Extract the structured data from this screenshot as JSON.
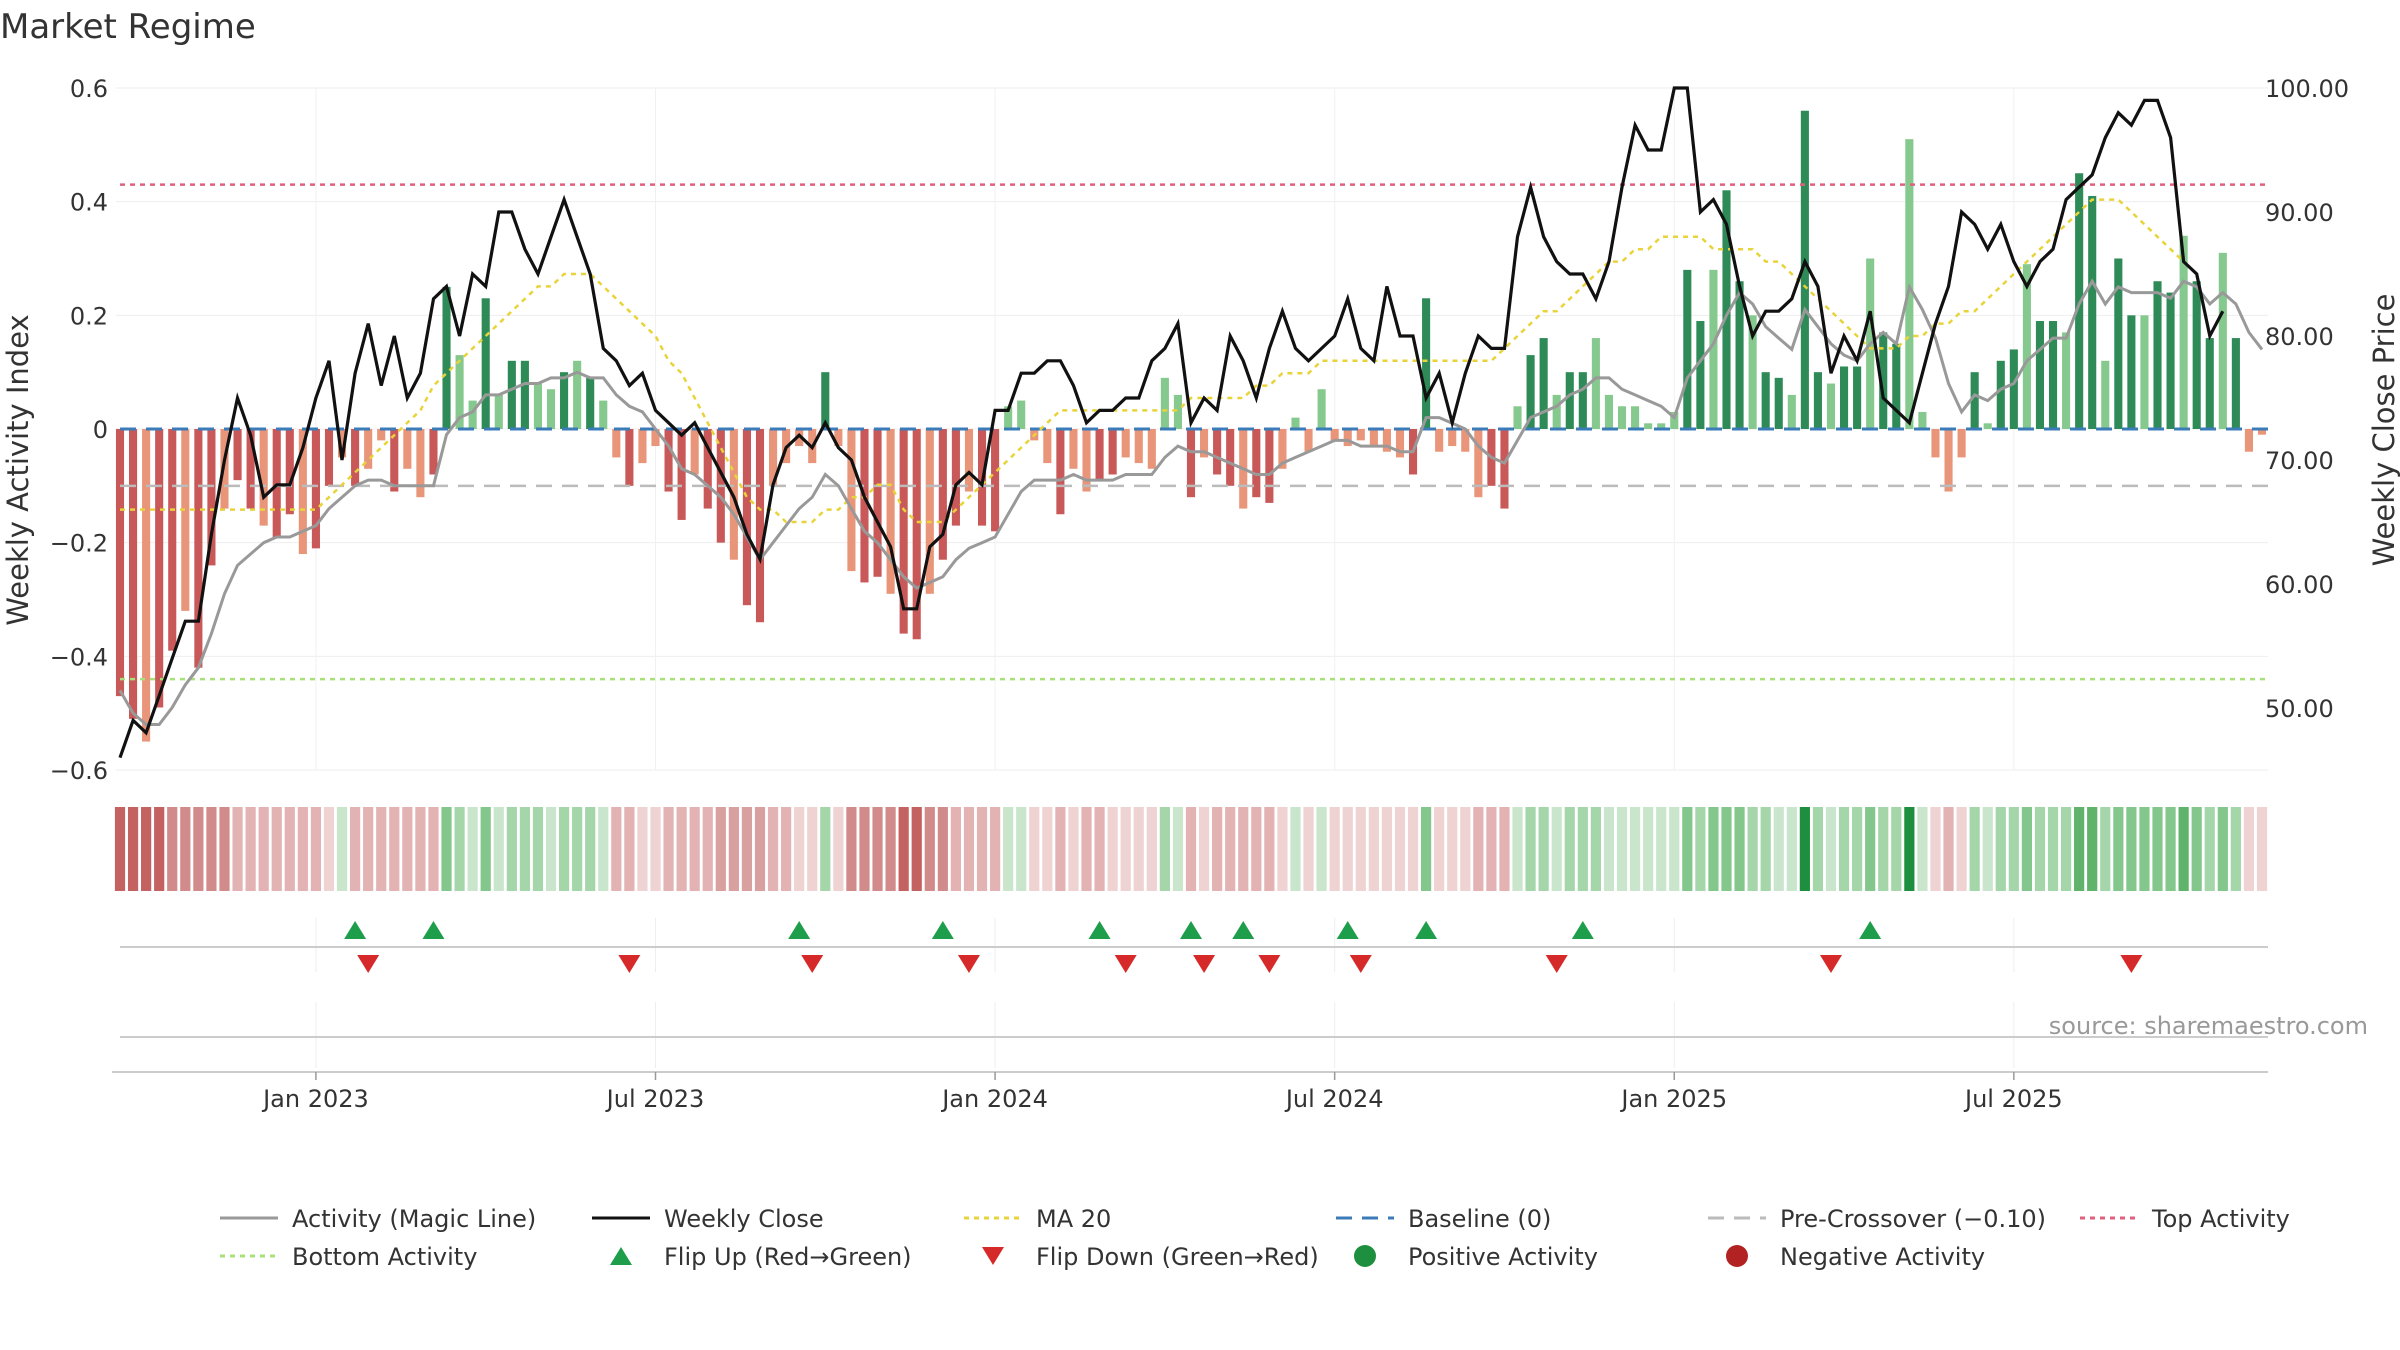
{
  "chart_data": {
    "type": "bar",
    "title": "Market Regime",
    "ylabel": "Weekly Activity Index",
    "y2label": "Weekly Close Price",
    "ylim": [
      -0.6,
      0.6
    ],
    "y2lim": [
      45,
      100
    ],
    "y_ticks": [
      0.6,
      0.4,
      0.2,
      0,
      -0.2,
      -0.4,
      -0.6
    ],
    "y_tick_labels": [
      "0.6",
      "0.4",
      "0.2",
      "0",
      "−0.2",
      "−0.4",
      "−0.6"
    ],
    "y2_ticks": [
      100,
      90,
      80,
      70,
      60,
      50
    ],
    "y2_tick_labels": [
      "100.00",
      "90.00",
      "80.00",
      "70.00",
      "60.00",
      "50.00"
    ],
    "x_tick_labels": [
      "Jan 2023",
      "Jul 2023",
      "Jan 2024",
      "Jul 2024",
      "Jan 2025",
      "Jul 2025"
    ],
    "x_tick_weeks": [
      15,
      41,
      67,
      93,
      119,
      145
    ],
    "reference_lines": {
      "baseline": 0,
      "pre_crossover": -0.1,
      "top_activity": 0.43,
      "bottom_activity": -0.44
    },
    "series": [
      {
        "name": "Weekly Activity",
        "values": [
          -0.47,
          -0.51,
          -0.55,
          -0.49,
          -0.39,
          -0.32,
          -0.42,
          -0.24,
          -0.14,
          -0.09,
          -0.14,
          -0.17,
          -0.19,
          -0.15,
          -0.22,
          -0.21,
          -0.1,
          -0.05,
          -0.1,
          -0.07,
          -0.02,
          -0.11,
          -0.07,
          -0.12,
          -0.08,
          0.25,
          0.13,
          0.05,
          0.23,
          0.06,
          0.12,
          0.12,
          0.08,
          0.07,
          0.1,
          0.12,
          0.09,
          0.05,
          -0.05,
          -0.1,
          -0.06,
          -0.03,
          -0.11,
          -0.16,
          -0.08,
          -0.14,
          -0.2,
          -0.23,
          -0.31,
          -0.34,
          -0.1,
          -0.06,
          -0.03,
          -0.06,
          0.1,
          -0.03,
          -0.25,
          -0.27,
          -0.26,
          -0.29,
          -0.36,
          -0.37,
          -0.29,
          -0.23,
          -0.17,
          -0.11,
          -0.17,
          -0.18,
          0.04,
          0.05,
          -0.02,
          -0.06,
          -0.15,
          -0.07,
          -0.11,
          -0.09,
          -0.08,
          -0.05,
          -0.06,
          -0.07,
          0.09,
          0.06,
          -0.12,
          -0.05,
          -0.08,
          -0.1,
          -0.14,
          -0.12,
          -0.13,
          -0.07,
          0.02,
          -0.04,
          0.07,
          -0.02,
          -0.03,
          -0.02,
          -0.03,
          -0.04,
          -0.05,
          -0.08,
          0.23,
          -0.04,
          -0.03,
          -0.04,
          -0.12,
          -0.1,
          -0.14,
          0.04,
          0.13,
          0.16,
          0.06,
          0.1,
          0.1,
          0.16,
          0.06,
          0.04,
          0.04,
          0.01,
          0.01,
          0.03,
          0.28,
          0.19,
          0.28,
          0.42,
          0.26,
          0.2,
          0.1,
          0.09,
          0.06,
          0.56,
          0.1,
          0.08,
          0.11,
          0.11,
          0.3,
          0.17,
          0.15,
          0.51,
          0.03,
          -0.05,
          -0.11,
          -0.05,
          0.1,
          0.01,
          0.12,
          0.14,
          0.29,
          0.19,
          0.19,
          0.17,
          0.45,
          0.41,
          0.12,
          0.3,
          0.2,
          0.2,
          0.26,
          0.24,
          0.34,
          0.26,
          0.16,
          0.31,
          0.16,
          -0.04,
          -0.01
        ]
      },
      {
        "name": "Activity (Magic Line)",
        "values": [
          -0.46,
          -0.5,
          -0.52,
          -0.52,
          -0.49,
          -0.45,
          -0.42,
          -0.36,
          -0.29,
          -0.24,
          -0.22,
          -0.2,
          -0.19,
          -0.19,
          -0.18,
          -0.17,
          -0.14,
          -0.12,
          -0.1,
          -0.09,
          -0.09,
          -0.1,
          -0.1,
          -0.1,
          -0.1,
          -0.01,
          0.02,
          0.03,
          0.06,
          0.06,
          0.07,
          0.08,
          0.08,
          0.09,
          0.09,
          0.1,
          0.09,
          0.09,
          0.06,
          0.04,
          0.03,
          0.0,
          -0.03,
          -0.07,
          -0.08,
          -0.1,
          -0.12,
          -0.15,
          -0.19,
          -0.23,
          -0.2,
          -0.17,
          -0.14,
          -0.12,
          -0.08,
          -0.1,
          -0.14,
          -0.18,
          -0.2,
          -0.23,
          -0.26,
          -0.28,
          -0.27,
          -0.26,
          -0.23,
          -0.21,
          -0.2,
          -0.19,
          -0.15,
          -0.11,
          -0.09,
          -0.09,
          -0.09,
          -0.08,
          -0.09,
          -0.09,
          -0.09,
          -0.08,
          -0.08,
          -0.08,
          -0.05,
          -0.03,
          -0.04,
          -0.04,
          -0.05,
          -0.06,
          -0.07,
          -0.08,
          -0.08,
          -0.06,
          -0.05,
          -0.04,
          -0.03,
          -0.02,
          -0.02,
          -0.03,
          -0.03,
          -0.03,
          -0.04,
          -0.04,
          0.02,
          0.02,
          0.01,
          0.0,
          -0.03,
          -0.05,
          -0.06,
          -0.02,
          0.02,
          0.03,
          0.04,
          0.06,
          0.07,
          0.09,
          0.09,
          0.07,
          0.06,
          0.05,
          0.04,
          0.02,
          0.09,
          0.12,
          0.15,
          0.2,
          0.24,
          0.22,
          0.18,
          0.16,
          0.14,
          0.21,
          0.18,
          0.15,
          0.13,
          0.12,
          0.15,
          0.17,
          0.15,
          0.25,
          0.21,
          0.16,
          0.08,
          0.03,
          0.06,
          0.05,
          0.07,
          0.08,
          0.12,
          0.14,
          0.16,
          0.16,
          0.22,
          0.26,
          0.22,
          0.25,
          0.24,
          0.24,
          0.24,
          0.23,
          0.26,
          0.25,
          0.22,
          0.24,
          0.22,
          0.17,
          0.14
        ]
      },
      {
        "name": "Weekly Close",
        "values": [
          46,
          49,
          48,
          51,
          54,
          57,
          57,
          64,
          70,
          75,
          72,
          67,
          68,
          68,
          71,
          75,
          78,
          70,
          77,
          81,
          76,
          80,
          75,
          77,
          83,
          84,
          80,
          85,
          84,
          90,
          90,
          87,
          85,
          88,
          91,
          88,
          85,
          79,
          78,
          76,
          77,
          74,
          73,
          72,
          73,
          71,
          69,
          67,
          64,
          62,
          68,
          71,
          72,
          71,
          73,
          71,
          70,
          67,
          65,
          63,
          58,
          58,
          63,
          64,
          68,
          69,
          68,
          74,
          74,
          77,
          77,
          78,
          78,
          76,
          73,
          74,
          74,
          75,
          75,
          78,
          79,
          81,
          73,
          75,
          74,
          80,
          78,
          75,
          79,
          82,
          79,
          78,
          79,
          80,
          83,
          79,
          78,
          84,
          80,
          80,
          75,
          77,
          73,
          77,
          80,
          79,
          79,
          88,
          92,
          88,
          86,
          85,
          85,
          83,
          86,
          92,
          97,
          95,
          95,
          100,
          100,
          90,
          91,
          89,
          84,
          80,
          82,
          82,
          83,
          86,
          84,
          77,
          80,
          78,
          82,
          75,
          74,
          73,
          77,
          81,
          84,
          90,
          89,
          87,
          89,
          86,
          84,
          86,
          87,
          91,
          92,
          93,
          96,
          98,
          97,
          99,
          99,
          96,
          86,
          85,
          80,
          82
        ]
      },
      {
        "name": "MA 20",
        "values": [
          66,
          66,
          66,
          66,
          66,
          66,
          66,
          66,
          66,
          66,
          66,
          66,
          66,
          66,
          66,
          66,
          67,
          68,
          69,
          70,
          71,
          72,
          73,
          74,
          76,
          77,
          78,
          79,
          80,
          81,
          82,
          83,
          84,
          84,
          85,
          85,
          85,
          84,
          83,
          82,
          81,
          80,
          78,
          77,
          75,
          73,
          71,
          69,
          67,
          66,
          66,
          65,
          65,
          65,
          66,
          66,
          67,
          67,
          68,
          68,
          66,
          65,
          65,
          65,
          66,
          67,
          68,
          69,
          70,
          71,
          72,
          73,
          74,
          74,
          74,
          74,
          74,
          74,
          74,
          74,
          74,
          74,
          75,
          75,
          75,
          75,
          75,
          76,
          76,
          77,
          77,
          77,
          78,
          78,
          78,
          78,
          78,
          78,
          78,
          78,
          78,
          78,
          78,
          78,
          78,
          78,
          79,
          80,
          81,
          82,
          82,
          83,
          84,
          85,
          86,
          86,
          87,
          87,
          88,
          88,
          88,
          88,
          87,
          87,
          87,
          87,
          86,
          86,
          85,
          84,
          83,
          82,
          81,
          80,
          79,
          79,
          79,
          80,
          80,
          81,
          81,
          82,
          82,
          83,
          84,
          85,
          86,
          87,
          88,
          89,
          90,
          91,
          91,
          91,
          90,
          89,
          88,
          87,
          86,
          85
        ]
      }
    ]
  },
  "regime_strip": {
    "colors": [
      "#c46161",
      "#c46161",
      "#c46161",
      "#c46161",
      "#d18b8b",
      "#d18b8b",
      "#d18b8b",
      "#d18b8b",
      "#d18b8b",
      "#e3b3b3",
      "#e3b3b3",
      "#e3b3b3",
      "#e3b3b3",
      "#e3b3b3",
      "#e3b3b3",
      "#e3b3b3",
      "#efd3d3",
      "#c9e6cc",
      "#e3b3b3",
      "#e3b3b3",
      "#e3b3b3",
      "#e3b3b3",
      "#e3b3b3",
      "#e3b3b3",
      "#e3b3b3",
      "#84c78c",
      "#a5d6aa",
      "#c9e6cc",
      "#84c78c",
      "#c9e6cc",
      "#a5d6aa",
      "#a5d6aa",
      "#a5d6aa",
      "#c9e6cc",
      "#a5d6aa",
      "#a5d6aa",
      "#a5d6aa",
      "#c9e6cc",
      "#e3b3b3",
      "#e3b3b3",
      "#efd3d3",
      "#efd3d3",
      "#e3b3b3",
      "#e3b3b3",
      "#e3b3b3",
      "#e3b3b3",
      "#d9a0a0",
      "#d9a0a0",
      "#d9a0a0",
      "#d9a0a0",
      "#e3b3b3",
      "#e3b3b3",
      "#efd3d3",
      "#efd3d3",
      "#a5d6aa",
      "#efd3d3",
      "#d18b8b",
      "#d18b8b",
      "#d18b8b",
      "#d18b8b",
      "#c46161",
      "#c46161",
      "#d18b8b",
      "#d18b8b",
      "#e3b3b3",
      "#e3b3b3",
      "#e3b3b3",
      "#e3b3b3",
      "#c9e6cc",
      "#c9e6cc",
      "#efd3d3",
      "#efd3d3",
      "#e3b3b3",
      "#efd3d3",
      "#e3b3b3",
      "#e3b3b3",
      "#efd3d3",
      "#efd3d3",
      "#efd3d3",
      "#efd3d3",
      "#a5d6aa",
      "#c9e6cc",
      "#e3b3b3",
      "#efd3d3",
      "#e3b3b3",
      "#e3b3b3",
      "#e3b3b3",
      "#e3b3b3",
      "#e3b3b3",
      "#efd3d3",
      "#c9e6cc",
      "#efd3d3",
      "#c9e6cc",
      "#efd3d3",
      "#efd3d3",
      "#efd3d3",
      "#efd3d3",
      "#efd3d3",
      "#efd3d3",
      "#efd3d3",
      "#84c78c",
      "#efd3d3",
      "#efd3d3",
      "#efd3d3",
      "#e3b3b3",
      "#e3b3b3",
      "#e3b3b3",
      "#c9e6cc",
      "#a5d6aa",
      "#a5d6aa",
      "#c9e6cc",
      "#a5d6aa",
      "#a5d6aa",
      "#a5d6aa",
      "#c9e6cc",
      "#c9e6cc",
      "#c9e6cc",
      "#c9e6cc",
      "#c9e6cc",
      "#c9e6cc",
      "#84c78c",
      "#a5d6aa",
      "#84c78c",
      "#84c78c",
      "#84c78c",
      "#a5d6aa",
      "#a5d6aa",
      "#c9e6cc",
      "#c9e6cc",
      "#1e8f3e",
      "#a5d6aa",
      "#c9e6cc",
      "#a5d6aa",
      "#a5d6aa",
      "#84c78c",
      "#a5d6aa",
      "#a5d6aa",
      "#1e8f3e",
      "#c9e6cc",
      "#efd3d3",
      "#e3b3b3",
      "#efd3d3",
      "#a5d6aa",
      "#c9e6cc",
      "#a5d6aa",
      "#a5d6aa",
      "#84c78c",
      "#a5d6aa",
      "#a5d6aa",
      "#a5d6aa",
      "#5fb36b",
      "#5fb36b",
      "#a5d6aa",
      "#84c78c",
      "#84c78c",
      "#84c78c",
      "#84c78c",
      "#84c78c",
      "#5fb36b",
      "#84c78c",
      "#a5d6aa",
      "#84c78c",
      "#a5d6aa",
      "#efd3d3",
      "#efd3d3"
    ]
  },
  "flips": {
    "up": [
      18,
      24,
      52,
      63,
      75,
      82,
      86,
      94,
      100,
      112,
      134
    ],
    "down": [
      19,
      39,
      53,
      65,
      77,
      83,
      88,
      95,
      110,
      131,
      154
    ]
  },
  "legend": [
    {
      "label": "Activity (Magic Line)",
      "kind": "line",
      "color": "#999999",
      "dash": ""
    },
    {
      "label": "Weekly Close",
      "kind": "line",
      "color": "#111111",
      "dash": ""
    },
    {
      "label": "MA 20",
      "kind": "line",
      "color": "#e8d43a",
      "dash": "5,5"
    },
    {
      "label": "Baseline (0)",
      "kind": "line",
      "color": "#3b7bb8",
      "dash": "16,10"
    },
    {
      "label": "Pre-Crossover (−0.10)",
      "kind": "line",
      "color": "#bbbbbb",
      "dash": "16,10"
    },
    {
      "label": "Top Activity",
      "kind": "line",
      "color": "#e0607e",
      "dash": "5,5"
    },
    {
      "label": "Bottom Activity",
      "kind": "line",
      "color": "#a8e07a",
      "dash": "5,5"
    },
    {
      "label": "Flip Up (Red→Green)",
      "kind": "up",
      "color": "#1e9e4a",
      "dash": ""
    },
    {
      "label": "Flip Down (Green→Red)",
      "kind": "down",
      "color": "#d62a2a",
      "dash": ""
    },
    {
      "label": "Positive Activity",
      "kind": "dot",
      "color": "#1e8f3e",
      "dash": ""
    },
    {
      "label": "Negative Activity",
      "kind": "dot",
      "color": "#b22222",
      "dash": ""
    }
  ],
  "source_text": "source: sharemaestro.com",
  "colors": {
    "pos_strong": "#2e8b57",
    "pos_light": "#86c98e",
    "neg_strong": "#c95858",
    "neg_light": "#e8957a"
  }
}
